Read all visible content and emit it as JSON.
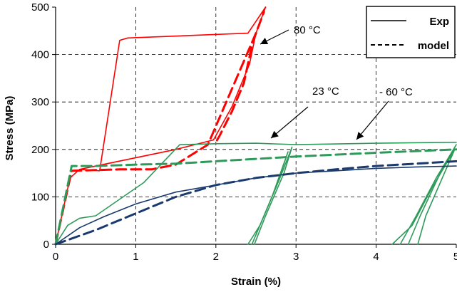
{
  "chart_data": {
    "type": "line",
    "xlabel": "Strain (%)",
    "ylabel": "Stress (MPa)",
    "xlim": [
      0,
      5
    ],
    "ylim": [
      0,
      500
    ],
    "xticks": [
      "0",
      "1",
      "2",
      "3",
      "4",
      "5"
    ],
    "yticks": [
      "0",
      "100",
      "200",
      "300",
      "400",
      "500"
    ],
    "grid": "dashed",
    "legend": {
      "position": "top-right",
      "entries": [
        {
          "label": "Exp",
          "style": "solid"
        },
        {
          "label": "model",
          "style": "dashed"
        }
      ]
    },
    "annotations": [
      {
        "text": "80 °C"
      },
      {
        "text": "23 °C"
      },
      {
        "text": "- 60 °C"
      }
    ],
    "series": [
      {
        "group": "80 °C",
        "kind": "Exp",
        "color": "#ff0000",
        "style": "solid",
        "points": [
          [
            0,
            0
          ],
          [
            0.18,
            140
          ],
          [
            0.3,
            158
          ],
          [
            0.55,
            155
          ],
          [
            0.8,
            430
          ],
          [
            0.9,
            435
          ],
          [
            2.4,
            445
          ],
          [
            2.62,
            500
          ]
        ]
      },
      {
        "group": "80 °C",
        "kind": "model",
        "color": "#ff0000",
        "style": "dashed",
        "points": [
          [
            0,
            0
          ],
          [
            0.2,
            155
          ],
          [
            0.8,
            158
          ],
          [
            1.2,
            158
          ],
          [
            1.5,
            168
          ],
          [
            1.9,
            210
          ],
          [
            2.5,
            445
          ],
          [
            2.6,
            490
          ]
        ]
      },
      {
        "group": "80 °C",
        "kind": "Exp unloading",
        "color": "#ff0000",
        "style": "solid",
        "points": [
          [
            2.62,
            500
          ],
          [
            2.5,
            445
          ],
          [
            2.42,
            380
          ],
          [
            2.2,
            290
          ],
          [
            1.97,
            220
          ],
          [
            1.5,
            200
          ],
          [
            0.3,
            158
          ]
        ]
      },
      {
        "group": "80 °C",
        "kind": "model return",
        "color": "#ff0000",
        "style": "dashed",
        "points": [
          [
            2.5,
            445
          ],
          [
            2.45,
            420
          ],
          [
            2.35,
            340
          ],
          [
            2.2,
            280
          ],
          [
            2.05,
            230
          ],
          [
            2.0,
            215
          ]
        ]
      },
      {
        "group": "23 °C",
        "kind": "Exp",
        "color": "#2e9a5a",
        "style": "solid",
        "points": [
          [
            0,
            0
          ],
          [
            0.15,
            40
          ],
          [
            0.3,
            55
          ],
          [
            0.5,
            60
          ],
          [
            1.1,
            130
          ],
          [
            1.55,
            210
          ],
          [
            2.0,
            212
          ],
          [
            2.5,
            213
          ],
          [
            3.0,
            210
          ],
          [
            4.0,
            213
          ],
          [
            5.0,
            215
          ]
        ]
      },
      {
        "group": "23 °C",
        "kind": "model",
        "color": "#2e9a5a",
        "style": "dashed",
        "points": [
          [
            0,
            0
          ],
          [
            0.2,
            165
          ],
          [
            0.5,
            165
          ],
          [
            1.0,
            168
          ],
          [
            1.5,
            170
          ],
          [
            2.0,
            175
          ],
          [
            3.0,
            185
          ],
          [
            4.0,
            193
          ],
          [
            5.0,
            200
          ]
        ]
      },
      {
        "group": "23 °C",
        "kind": "Exp cycle 1",
        "color": "#2e9a5a",
        "style": "solid",
        "points": [
          [
            2.45,
            0
          ],
          [
            2.6,
            60
          ],
          [
            2.8,
            140
          ],
          [
            2.95,
            205
          ],
          [
            2.85,
            150
          ],
          [
            2.62,
            60
          ],
          [
            2.48,
            0
          ]
        ]
      },
      {
        "group": "23 °C",
        "kind": "Exp cycle 2",
        "color": "#2e9a5a",
        "style": "solid",
        "points": [
          [
            2.4,
            0
          ],
          [
            2.55,
            40
          ],
          [
            2.75,
            120
          ],
          [
            2.9,
            195
          ],
          [
            2.7,
            100
          ],
          [
            2.5,
            20
          ]
        ]
      },
      {
        "group": "23 °C",
        "kind": "Exp cycle 3",
        "color": "#2e9a5a",
        "style": "solid",
        "points": [
          [
            4.3,
            0
          ],
          [
            4.5,
            60
          ],
          [
            4.75,
            140
          ],
          [
            5.0,
            210
          ],
          [
            4.8,
            150
          ],
          [
            4.55,
            60
          ],
          [
            4.4,
            0
          ]
        ]
      },
      {
        "group": "23 °C",
        "kind": "Exp cycle 4",
        "color": "#2e9a5a",
        "style": "solid",
        "points": [
          [
            4.2,
            0
          ],
          [
            4.45,
            40
          ],
          [
            4.7,
            120
          ],
          [
            4.98,
            200
          ],
          [
            4.62,
            60
          ],
          [
            4.52,
            0
          ]
        ]
      },
      {
        "group": "- 60 °C",
        "kind": "Exp",
        "color": "#1a3a6e",
        "style": "solid",
        "points": [
          [
            0,
            0
          ],
          [
            0.3,
            35
          ],
          [
            0.6,
            58
          ],
          [
            1.0,
            85
          ],
          [
            1.5,
            110
          ],
          [
            2.0,
            125
          ],
          [
            2.5,
            140
          ],
          [
            3.0,
            150
          ],
          [
            3.5,
            155
          ],
          [
            4.0,
            160
          ],
          [
            4.5,
            163
          ],
          [
            5.0,
            165
          ]
        ]
      },
      {
        "group": "- 60 °C",
        "kind": "model",
        "color": "#1a3a6e",
        "style": "dashed",
        "points": [
          [
            0,
            0
          ],
          [
            0.5,
            30
          ],
          [
            1.0,
            65
          ],
          [
            1.5,
            100
          ],
          [
            2.0,
            125
          ],
          [
            2.5,
            140
          ],
          [
            3.0,
            150
          ],
          [
            3.5,
            158
          ],
          [
            4.0,
            165
          ],
          [
            4.5,
            170
          ],
          [
            5.0,
            175
          ]
        ]
      }
    ]
  }
}
